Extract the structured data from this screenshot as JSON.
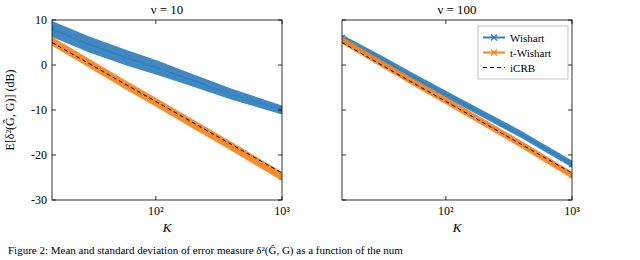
{
  "caption": "Figure 2: Mean and standard deviation of error measure δ²(Ĝ, G) as a function of the num",
  "chart_data": [
    {
      "type": "line",
      "title": "ν = 10",
      "xlabel": "K",
      "ylabel": "E[δ²(Ĝ, G)] (dB)",
      "log": "x",
      "grid": false,
      "x": [
        15,
        30,
        60,
        100,
        200,
        400,
        1000
      ],
      "xlim": [
        15,
        1000
      ],
      "xticks": [
        {
          "value": 100,
          "label": "10²"
        },
        {
          "value": 1000,
          "label": "10³"
        }
      ],
      "ylim": [
        -30,
        10
      ],
      "yticks": [
        -30,
        -20,
        -10,
        0,
        10
      ],
      "series": [
        {
          "color": "#2f7ebc",
          "marker": "x",
          "values": [
            8,
            4.5,
            1.5,
            -0.5,
            -3.5,
            -6.5,
            -10
          ],
          "std": [
            1.8,
            1.8,
            1.7,
            1.6,
            1.4,
            1.2,
            1.0
          ]
        },
        {
          "color": "#f5861f",
          "marker": "x",
          "values": [
            5.3,
            0.3,
            -4.7,
            -8.3,
            -13.2,
            -18.1,
            -24.8
          ],
          "std": [
            1.0,
            1.0,
            1.0,
            1.0,
            1.0,
            1.0,
            1.0
          ]
        },
        {
          "color": "#000000",
          "line_style": "dashed",
          "values": [
            5,
            0.2,
            -4.6,
            -8.1,
            -12.9,
            -17.7,
            -24
          ]
        }
      ]
    },
    {
      "type": "line",
      "title": "ν = 100",
      "xlabel": "K",
      "log": "x",
      "grid": false,
      "tick_labels": "x",
      "legend": "upper right",
      "x": [
        15,
        30,
        60,
        100,
        200,
        400,
        1000
      ],
      "xlim": [
        15,
        1000
      ],
      "xticks": [
        {
          "value": 100,
          "label": "10²"
        },
        {
          "value": 1000,
          "label": "10³"
        }
      ],
      "ylim": [
        -30,
        10
      ],
      "yticks": [
        -30,
        -20,
        -10,
        0,
        10
      ],
      "series": [
        {
          "name": "Wishart",
          "color": "#2f7ebc",
          "marker": "x",
          "values": [
            6,
            1.5,
            -3.2,
            -6.5,
            -11,
            -15.5,
            -22
          ],
          "std": [
            0.8,
            0.8,
            0.8,
            0.8,
            0.8,
            0.8,
            0.8
          ]
        },
        {
          "name": "t-Wishart",
          "color": "#f5861f",
          "marker": "x",
          "values": [
            5.5,
            0.5,
            -4.4,
            -7.9,
            -12.8,
            -17.7,
            -24.5
          ],
          "std": [
            0.8,
            0.8,
            0.8,
            0.8,
            0.8,
            0.8,
            0.8
          ]
        },
        {
          "name": "iCRB",
          "color": "#000000",
          "line_style": "dashed",
          "values": [
            5,
            0.2,
            -4.6,
            -8.1,
            -12.9,
            -17.7,
            -24
          ]
        }
      ]
    }
  ]
}
